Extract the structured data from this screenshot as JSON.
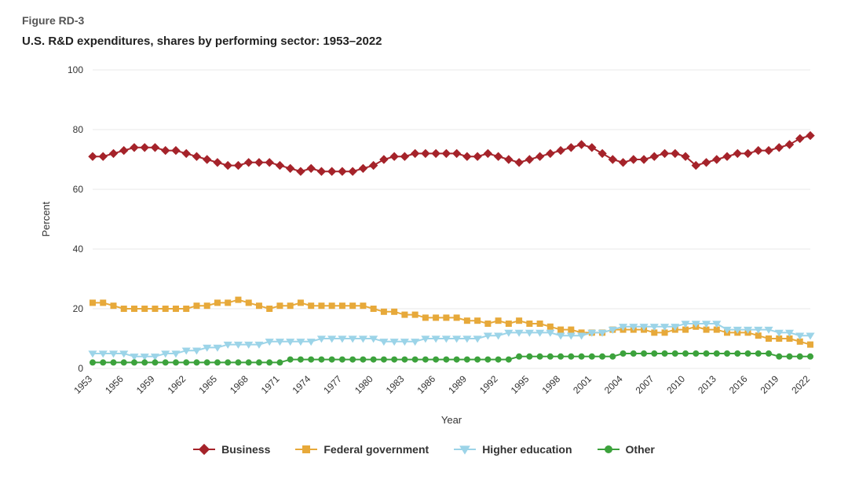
{
  "figure_number": "Figure RD-3",
  "title": "U.S. R&D expenditures, shares by performing sector: 1953–2022",
  "chart": {
    "type": "line",
    "xlabel": "Year",
    "ylabel": "Percent",
    "xlim": [
      1953,
      2022
    ],
    "ylim": [
      0,
      100
    ],
    "ytick_step": 20,
    "xtick_step": 3,
    "xtick_rotate": -45,
    "background_color": "#ffffff",
    "grid_color": "#e8e8e8",
    "axis_color": "#cfcfcf",
    "line_width": 2,
    "marker_size": 7,
    "label_fontsize": 13,
    "tick_fontsize": 12,
    "years": [
      1953,
      1954,
      1955,
      1956,
      1957,
      1958,
      1959,
      1960,
      1961,
      1962,
      1963,
      1964,
      1965,
      1966,
      1967,
      1968,
      1969,
      1970,
      1971,
      1972,
      1973,
      1974,
      1975,
      1976,
      1977,
      1978,
      1979,
      1980,
      1981,
      1982,
      1983,
      1984,
      1985,
      1986,
      1987,
      1988,
      1989,
      1990,
      1991,
      1992,
      1993,
      1994,
      1995,
      1996,
      1997,
      1998,
      1999,
      2000,
      2001,
      2002,
      2003,
      2004,
      2005,
      2006,
      2007,
      2008,
      2009,
      2010,
      2011,
      2012,
      2013,
      2014,
      2015,
      2016,
      2017,
      2018,
      2019,
      2020,
      2021,
      2022
    ],
    "series": [
      {
        "name": "Business",
        "color": "#a5232a",
        "marker": "diamond",
        "values": [
          71,
          71,
          72,
          73,
          74,
          74,
          74,
          73,
          73,
          72,
          71,
          70,
          69,
          68,
          68,
          69,
          69,
          69,
          68,
          67,
          66,
          67,
          66,
          66,
          66,
          66,
          67,
          68,
          70,
          71,
          71,
          72,
          72,
          72,
          72,
          72,
          71,
          71,
          72,
          71,
          70,
          69,
          70,
          71,
          72,
          73,
          74,
          75,
          74,
          72,
          70,
          69,
          70,
          70,
          71,
          72,
          72,
          71,
          68,
          69,
          70,
          71,
          72,
          72,
          73,
          73,
          74,
          75,
          77,
          78
        ]
      },
      {
        "name": "Federal government",
        "color": "#e7a93a",
        "marker": "square",
        "values": [
          22,
          22,
          21,
          20,
          20,
          20,
          20,
          20,
          20,
          20,
          21,
          21,
          22,
          22,
          23,
          22,
          21,
          20,
          21,
          21,
          22,
          21,
          21,
          21,
          21,
          21,
          21,
          20,
          19,
          19,
          18,
          18,
          17,
          17,
          17,
          17,
          16,
          16,
          15,
          16,
          15,
          16,
          15,
          15,
          14,
          13,
          13,
          12,
          12,
          12,
          13,
          13,
          13,
          13,
          12,
          12,
          13,
          13,
          14,
          13,
          13,
          12,
          12,
          12,
          11,
          10,
          10,
          10,
          9,
          8
        ]
      },
      {
        "name": "Higher education",
        "color": "#9cd4e8",
        "marker": "triangle-down",
        "values": [
          5,
          5,
          5,
          5,
          4,
          4,
          4,
          5,
          5,
          6,
          6,
          7,
          7,
          8,
          8,
          8,
          8,
          9,
          9,
          9,
          9,
          9,
          10,
          10,
          10,
          10,
          10,
          10,
          9,
          9,
          9,
          9,
          10,
          10,
          10,
          10,
          10,
          10,
          11,
          11,
          12,
          12,
          12,
          12,
          12,
          11,
          11,
          11,
          12,
          12,
          13,
          14,
          14,
          14,
          14,
          14,
          14,
          15,
          15,
          15,
          15,
          13,
          13,
          13,
          13,
          13,
          12,
          12,
          11,
          11
        ]
      },
      {
        "name": "Other",
        "color": "#3ca23c",
        "marker": "circle",
        "values": [
          2,
          2,
          2,
          2,
          2,
          2,
          2,
          2,
          2,
          2,
          2,
          2,
          2,
          2,
          2,
          2,
          2,
          2,
          2,
          3,
          3,
          3,
          3,
          3,
          3,
          3,
          3,
          3,
          3,
          3,
          3,
          3,
          3,
          3,
          3,
          3,
          3,
          3,
          3,
          3,
          3,
          4,
          4,
          4,
          4,
          4,
          4,
          4,
          4,
          4,
          4,
          5,
          5,
          5,
          5,
          5,
          5,
          5,
          5,
          5,
          5,
          5,
          5,
          5,
          5,
          5,
          4,
          4,
          4,
          4
        ]
      }
    ]
  },
  "legend": {
    "items": [
      {
        "label": "Business"
      },
      {
        "label": "Federal government"
      },
      {
        "label": "Higher education"
      },
      {
        "label": "Other"
      }
    ]
  }
}
